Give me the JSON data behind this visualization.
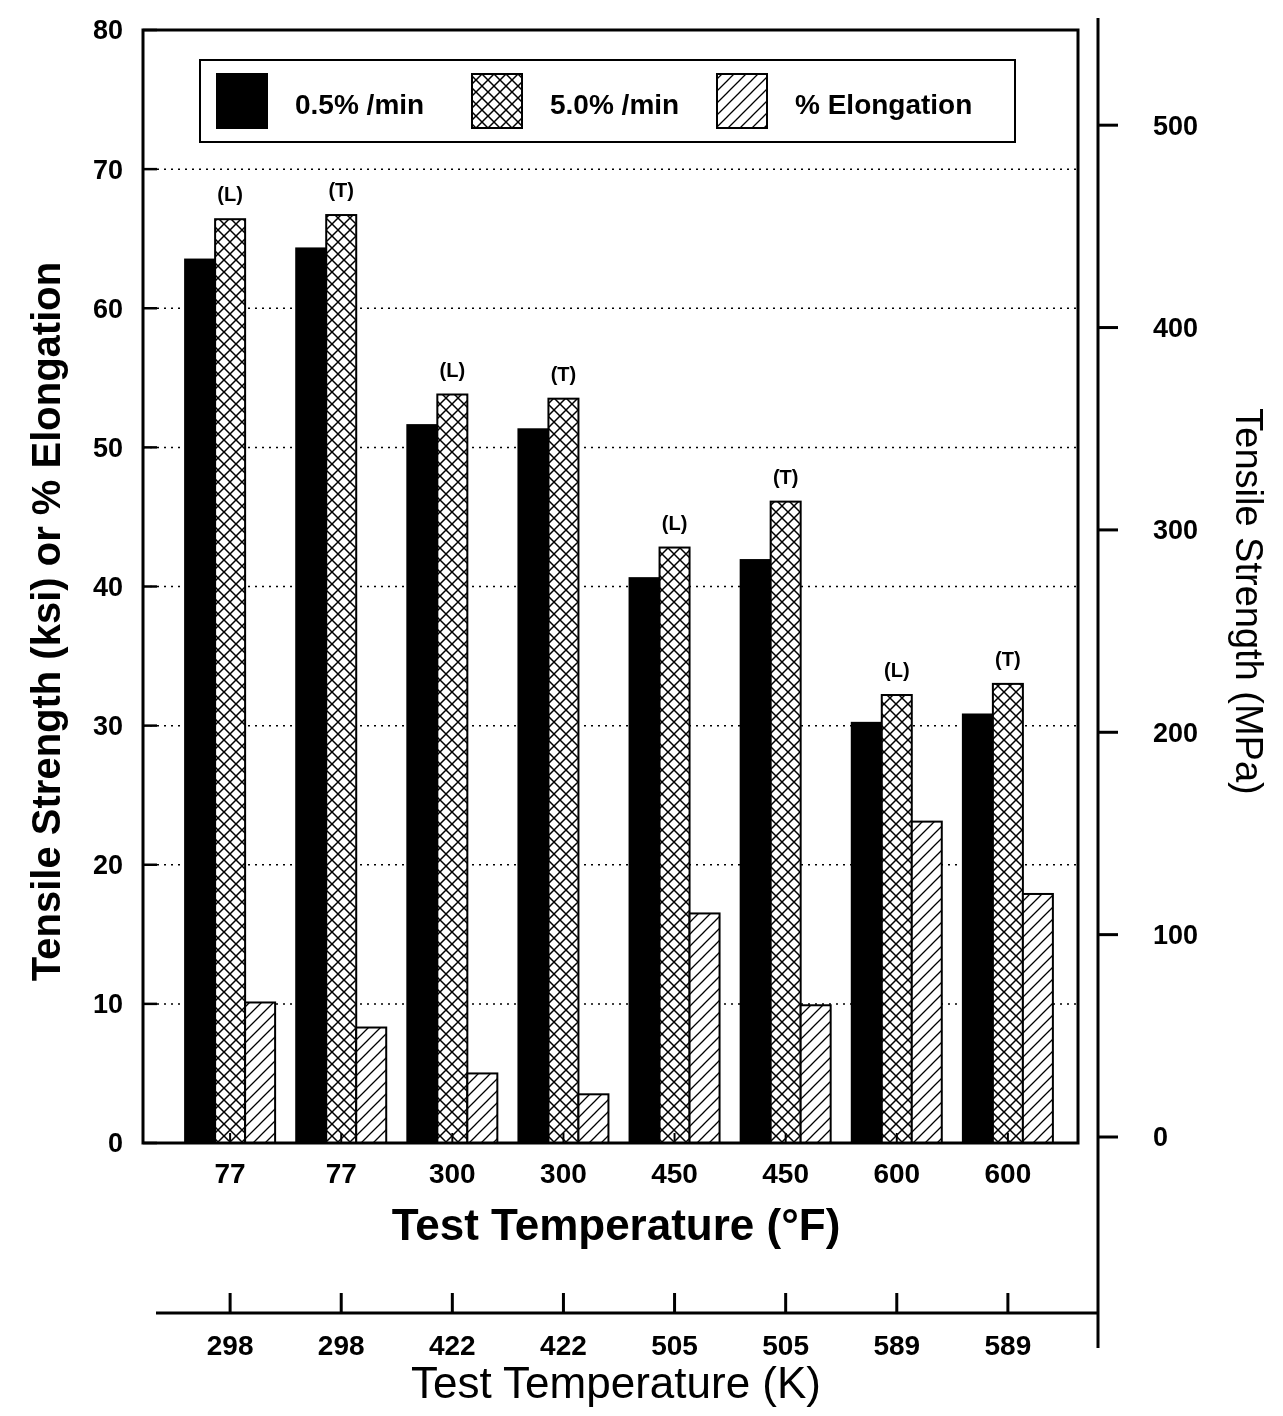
{
  "chart_data": {
    "type": "bar",
    "xlabel": "Test Temperature (°F)",
    "ylabel": "Tensile Strength (ksi) or % Elongation",
    "y2label": "Tensile Strength (MPa)",
    "categories": [
      "77",
      "77",
      "300",
      "300",
      "450",
      "450",
      "600",
      "600"
    ],
    "series": [
      {
        "name": "0.5% /min",
        "color": "#000000",
        "values": [
          63.5,
          64.3,
          51.6,
          51.3,
          40.6,
          41.9,
          30.2,
          30.8
        ]
      },
      {
        "name": "5.0% /min",
        "color": "#000000",
        "values": [
          66.4,
          66.7,
          53.8,
          53.5,
          42.8,
          46.1,
          32.2,
          33.0
        ]
      },
      {
        "name": "% Elongation",
        "color": "#000000",
        "values": [
          10.1,
          8.3,
          5.0,
          3.5,
          16.5,
          9.9,
          23.1,
          17.9
        ]
      }
    ],
    "ylim": [
      0,
      80
    ],
    "yticks": [
      0,
      10,
      20,
      30,
      40,
      50,
      60,
      70,
      80
    ],
    "y2lim": [
      0,
      550
    ],
    "y2ticks": [
      0,
      100,
      200,
      300,
      400,
      500
    ],
    "grid": "y",
    "legend": "top",
    "annotations": [
      "(L)",
      "(T)",
      "(L)",
      "(T)",
      "(L)",
      "(T)",
      "(L)",
      "(T)",
      "298",
      "298",
      "422",
      "422",
      "505",
      "505",
      "589",
      "589",
      "Test Temperature (K)"
    ]
  }
}
